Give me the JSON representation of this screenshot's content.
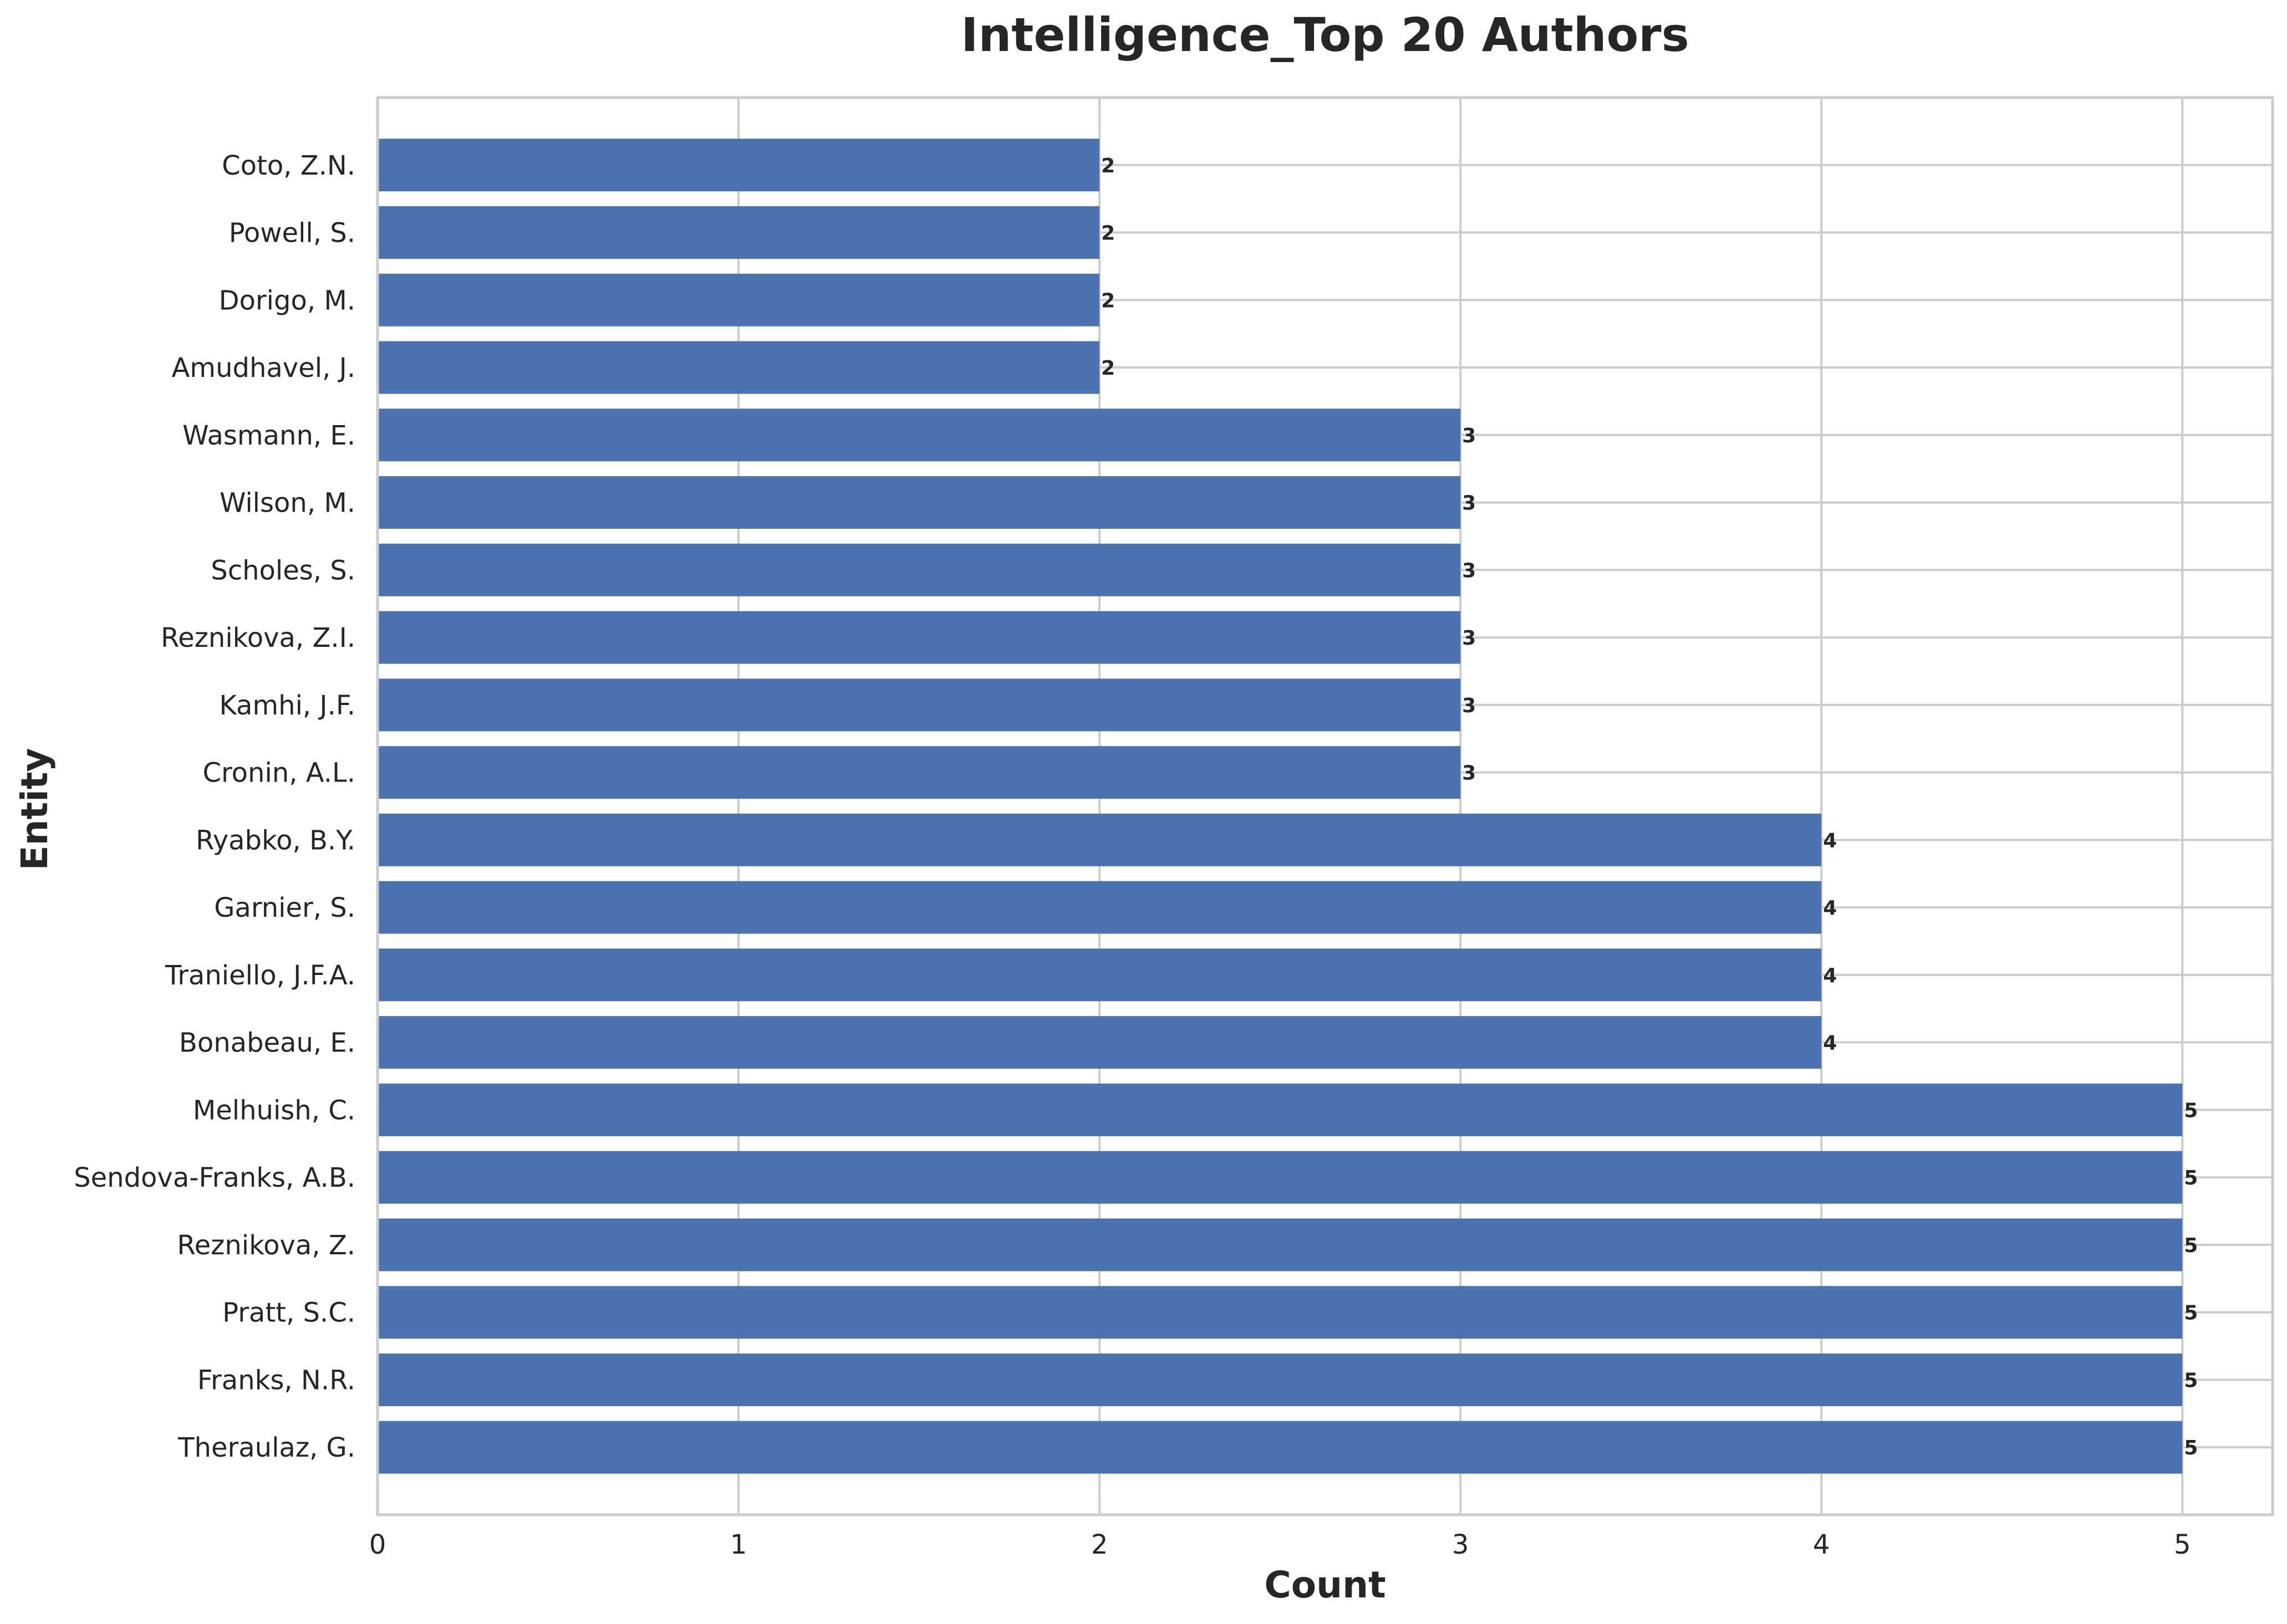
{
  "chart_data": {
    "type": "bar",
    "orientation": "horizontal",
    "title": "Intelligence_Top 20 Authors",
    "xlabel": "Count",
    "ylabel": "Entity",
    "xlim": [
      0,
      5.25
    ],
    "x_ticks": [
      0,
      1,
      2,
      3,
      4,
      5
    ],
    "grid": true,
    "legend": "none",
    "bar_color": "#4c72b0",
    "categories": [
      "Theraulaz, G.",
      "Franks, N.R.",
      "Pratt, S.C.",
      "Reznikova, Z.",
      "Sendova-Franks, A.B.",
      "Melhuish, C.",
      "Bonabeau, E.",
      "Traniello, J.F.A.",
      "Garnier, S.",
      "Ryabko, B.Y.",
      "Cronin, A.L.",
      "Kamhi, J.F.",
      "Reznikova, Z.I.",
      "Scholes, S.",
      "Wilson, M.",
      "Wasmann, E.",
      "Amudhavel, J.",
      "Dorigo, M.",
      "Powell, S.",
      "Coto, Z.N."
    ],
    "values": [
      5,
      5,
      5,
      5,
      5,
      5,
      4,
      4,
      4,
      4,
      3,
      3,
      3,
      3,
      3,
      3,
      2,
      2,
      2,
      2
    ]
  }
}
